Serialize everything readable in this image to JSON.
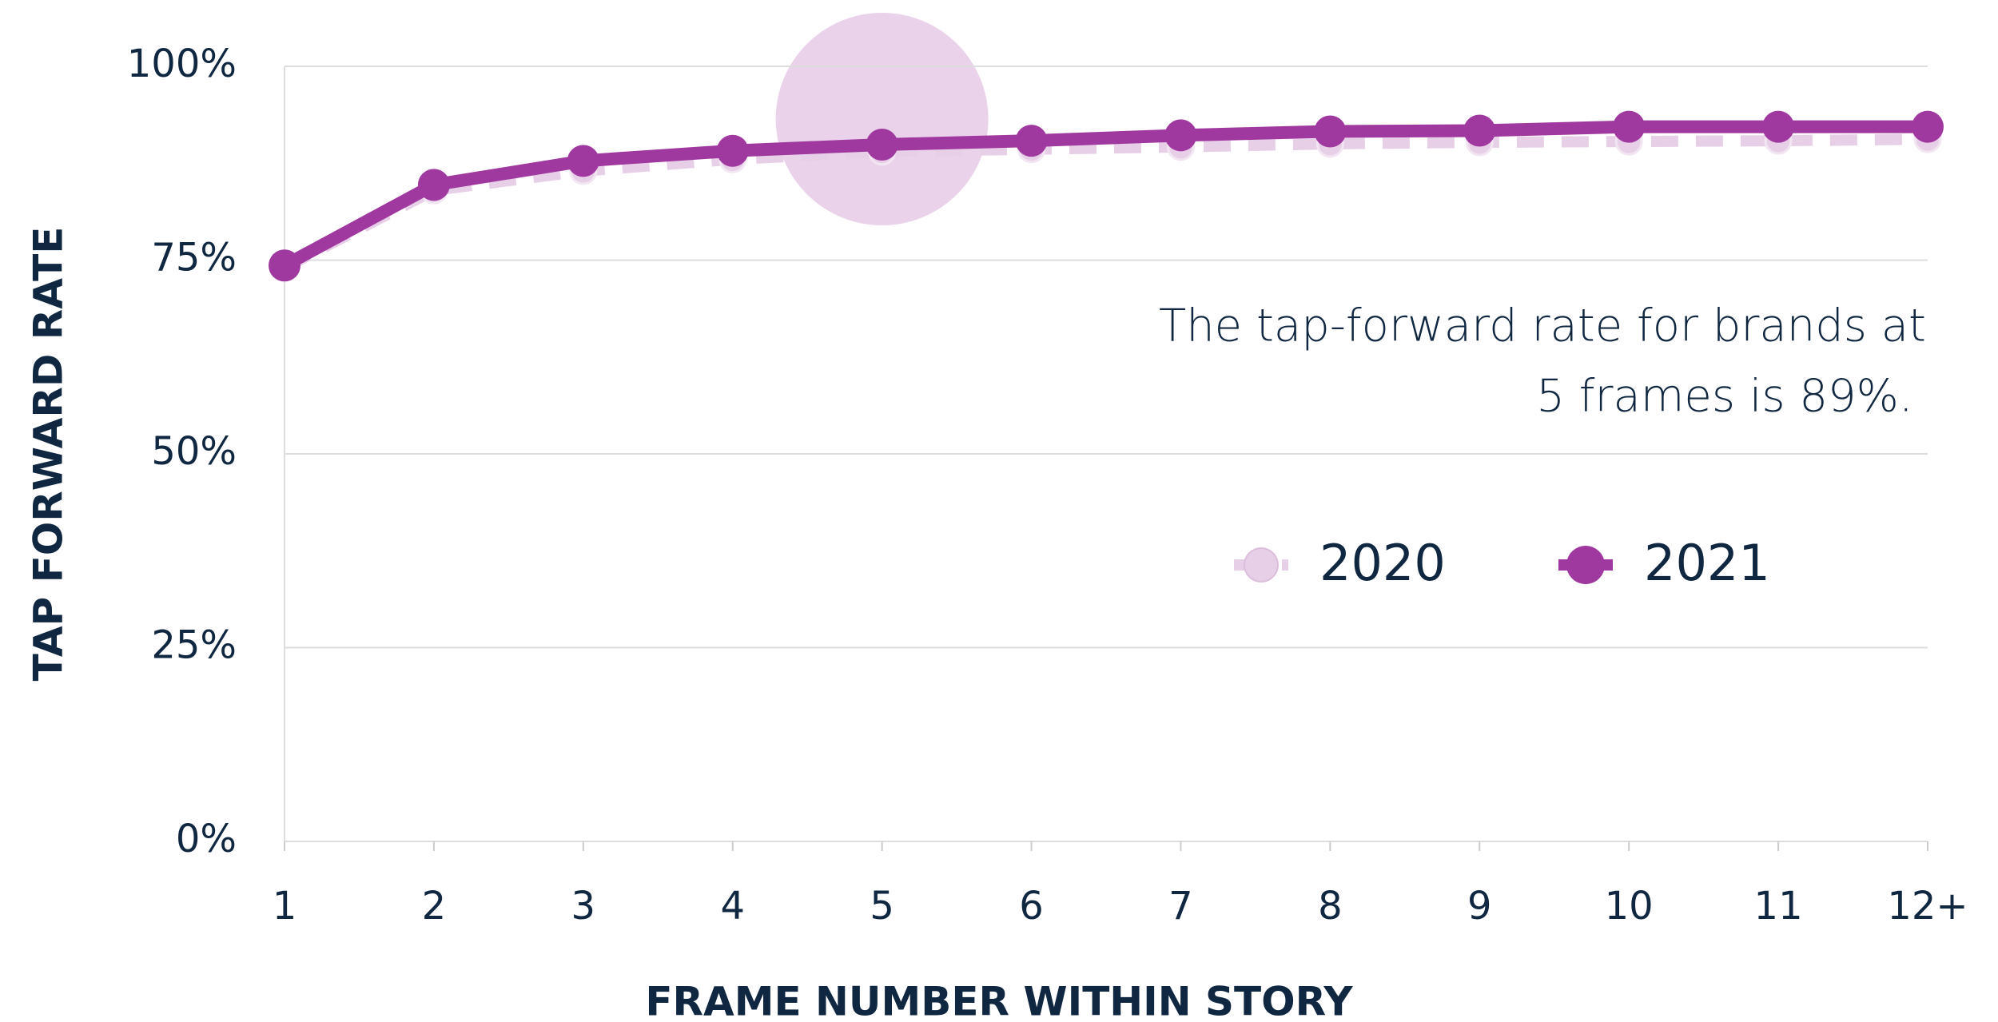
{
  "chart_data": {
    "type": "line",
    "x_label": "FRAME NUMBER WITHIN STORY",
    "y_label": "TAP FORWARD RATE",
    "categories": [
      "1",
      "2",
      "3",
      "4",
      "5",
      "6",
      "7",
      "8",
      "9",
      "10",
      "11",
      "12+"
    ],
    "series": [
      {
        "name": "2020",
        "color": "#e8cfe8",
        "values": [
          74,
          84,
          86.5,
          88,
          89,
          89.3,
          89.6,
          90,
          90.2,
          90.3,
          90.4,
          90.6
        ]
      },
      {
        "name": "2021",
        "color": "#a0399f",
        "values": [
          74.3,
          84.7,
          87.8,
          89.1,
          89.9,
          90.4,
          91.1,
          91.6,
          91.7,
          92.2,
          92.2,
          92.2
        ]
      }
    ],
    "ylim": [
      0,
      100
    ],
    "yticks": [
      {
        "value": 0,
        "label": "0%"
      },
      {
        "value": 25,
        "label": "25%"
      },
      {
        "value": 50,
        "label": "50%"
      },
      {
        "value": 75,
        "label": "75%"
      },
      {
        "value": 100,
        "label": "100%"
      }
    ],
    "grid": true,
    "annotation": {
      "lines": [
        "The tap-forward rate for brands at",
        "5 frames is 89%."
      ],
      "category": "5"
    }
  }
}
